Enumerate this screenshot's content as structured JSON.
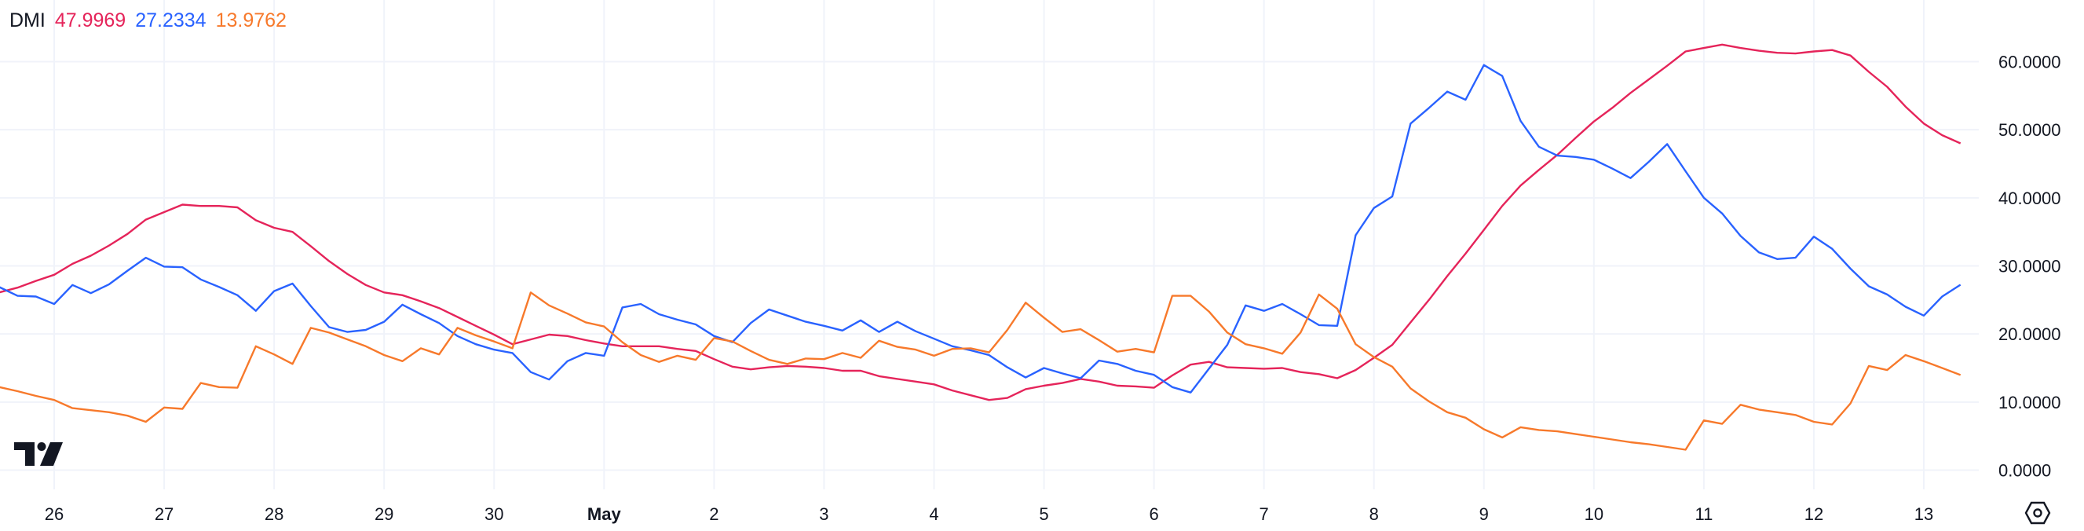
{
  "legend": {
    "title": "DMI",
    "adx_value": "47.9969",
    "plus_di_value": "27.2334",
    "minus_di_value": "13.9762"
  },
  "colors": {
    "adx": "#E5245A",
    "plus_di": "#2962FF",
    "minus_di": "#F7792B",
    "grid": "#F0F3FA",
    "text": "#131722"
  },
  "icons": {
    "logo": "tradingview-logo",
    "settings": "settings-hexagon-icon"
  },
  "chart_data": {
    "type": "line",
    "title": "DMI",
    "interval": "4h",
    "x_tick_labels": [
      "26",
      "27",
      "28",
      "29",
      "30",
      "May",
      "2",
      "3",
      "4",
      "5",
      "6",
      "7",
      "8",
      "9",
      "10",
      "11",
      "12",
      "13"
    ],
    "x_tick_dates": [
      "Apr 26",
      "Apr 27",
      "Apr 28",
      "Apr 29",
      "Apr 30",
      "May 1",
      "May 2",
      "May 3",
      "May 4",
      "May 5",
      "May 6",
      "May 7",
      "May 8",
      "May 9",
      "May 10",
      "May 11",
      "May 12",
      "May 13"
    ],
    "y_tick_labels": [
      "60.0000",
      "50.0000",
      "40.0000",
      "30.0000",
      "20.0000",
      "10.0000",
      "0.0000"
    ],
    "y_ticks": [
      60,
      50,
      40,
      30,
      20,
      10,
      0
    ],
    "ylim": [
      0,
      60
    ],
    "grid": true,
    "legend_position": "top-left",
    "x": [
      "Apr 25 12:00",
      "Apr 25 16:00",
      "Apr 25 20:00",
      "Apr 26 00:00",
      "Apr 26 04:00",
      "Apr 26 08:00",
      "Apr 26 12:00",
      "Apr 26 16:00",
      "Apr 26 20:00",
      "Apr 27 00:00",
      "Apr 27 04:00",
      "Apr 27 08:00",
      "Apr 27 12:00",
      "Apr 27 16:00",
      "Apr 27 20:00",
      "Apr 28 00:00",
      "Apr 28 04:00",
      "Apr 28 08:00",
      "Apr 28 12:00",
      "Apr 28 16:00",
      "Apr 28 20:00",
      "Apr 29 00:00",
      "Apr 29 04:00",
      "Apr 29 08:00",
      "Apr 29 12:00",
      "Apr 29 16:00",
      "Apr 29 20:00",
      "Apr 30 00:00",
      "Apr 30 04:00",
      "Apr 30 08:00",
      "Apr 30 12:00",
      "Apr 30 16:00",
      "Apr 30 20:00",
      "May 1 00:00",
      "May 1 04:00",
      "May 1 08:00",
      "May 1 12:00",
      "May 1 16:00",
      "May 1 20:00",
      "May 2 00:00",
      "May 2 04:00",
      "May 2 08:00",
      "May 2 12:00",
      "May 2 16:00",
      "May 2 20:00",
      "May 3 00:00",
      "May 3 04:00",
      "May 3 08:00",
      "May 3 12:00",
      "May 3 16:00",
      "May 3 20:00",
      "May 4 00:00",
      "May 4 04:00",
      "May 4 08:00",
      "May 4 12:00",
      "May 4 16:00",
      "May 4 20:00",
      "May 5 00:00",
      "May 5 04:00",
      "May 5 08:00",
      "May 5 12:00",
      "May 5 16:00",
      "May 5 20:00",
      "May 6 00:00",
      "May 6 04:00",
      "May 6 08:00",
      "May 6 12:00",
      "May 6 16:00",
      "May 6 20:00",
      "May 7 00:00",
      "May 7 04:00",
      "May 7 08:00",
      "May 7 12:00",
      "May 7 16:00",
      "May 7 20:00",
      "May 8 00:00",
      "May 8 04:00",
      "May 8 08:00",
      "May 8 12:00",
      "May 8 16:00",
      "May 8 20:00",
      "May 9 00:00",
      "May 9 04:00",
      "May 9 08:00",
      "May 9 12:00",
      "May 9 16:00",
      "May 9 20:00",
      "May 10 00:00",
      "May 10 04:00",
      "May 10 08:00",
      "May 10 12:00",
      "May 10 16:00",
      "May 10 20:00",
      "May 11 00:00",
      "May 11 04:00",
      "May 11 08:00",
      "May 11 12:00",
      "May 11 16:00",
      "May 11 20:00",
      "May 12 00:00",
      "May 12 04:00",
      "May 12 08:00",
      "May 12 12:00",
      "May 12 16:00",
      "May 12 20:00",
      "May 13 00:00",
      "May 13 04:00",
      "May 13 08:00"
    ],
    "series": [
      {
        "key": "adx",
        "values": [
          26.1,
          26.8,
          27.8,
          28.7,
          30.3,
          31.5,
          33,
          34.7,
          36.8,
          37.9,
          39,
          38.8,
          38.8,
          38.6,
          36.7,
          35.6,
          35,
          32.9,
          30.7,
          28.8,
          27.2,
          26.1,
          25.7,
          24.8,
          23.8,
          22.5,
          21.2,
          19.9,
          18.5,
          19.2,
          19.9,
          19.7,
          19.1,
          18.6,
          18.2,
          18.2,
          18.2,
          17.8,
          17.5,
          16.3,
          15.2,
          14.8,
          15.1,
          15.3,
          15.2,
          15,
          14.6,
          14.6,
          13.8,
          13.4,
          13,
          12.6,
          11.7,
          11,
          10.3,
          10.6,
          11.9,
          12.4,
          12.8,
          13.4,
          13,
          12.4,
          12.3,
          12.1,
          13.9,
          15.5,
          15.9,
          15.1,
          15,
          14.9,
          15,
          14.4,
          14.1,
          13.5,
          14.7,
          16.5,
          18.4,
          21.7,
          25,
          28.5,
          31.8,
          35.3,
          38.8,
          41.8,
          44.1,
          46.3,
          48.8,
          51.2,
          53.2,
          55.4,
          57.4,
          59.4,
          61.5,
          62,
          62.5,
          62,
          61.6,
          61.3,
          61.2,
          61.5,
          61.7,
          60.9,
          58.5,
          56.3,
          53.4,
          50.9,
          49.2,
          47.9969
        ]
      },
      {
        "key": "plus_di",
        "values": [
          26.9,
          25.6,
          25.5,
          24.4,
          27.2,
          26,
          27.3,
          29.3,
          31.2,
          29.9,
          29.8,
          28,
          26.9,
          25.7,
          23.4,
          26.3,
          27.4,
          24.1,
          21,
          20.3,
          20.6,
          21.8,
          24.3,
          22.9,
          21.6,
          19.7,
          18.5,
          17.7,
          17.2,
          14.4,
          13.3,
          16,
          17.2,
          16.8,
          23.9,
          24.4,
          22.9,
          22.1,
          21.4,
          19.7,
          18.8,
          21.6,
          23.6,
          22.7,
          21.8,
          21.2,
          20.5,
          22,
          20.3,
          21.8,
          20.4,
          19.3,
          18.2,
          17.6,
          16.9,
          15.1,
          13.6,
          15,
          14.2,
          13.5,
          16.1,
          15.6,
          14.6,
          14,
          12.2,
          11.4,
          14.9,
          18.4,
          24.2,
          23.4,
          24.4,
          22.9,
          21.3,
          21.2,
          34.5,
          38.5,
          40.2,
          50.9,
          53.2,
          55.6,
          54.4,
          59.5,
          57.9,
          51.3,
          47.5,
          46.2,
          46,
          45.6,
          44.3,
          42.9,
          45.3,
          47.9,
          43.9,
          40,
          37.7,
          34.4,
          32,
          31,
          31.2,
          34.3,
          32.5,
          29.6,
          27,
          25.8,
          24,
          22.7,
          25.5,
          27.2334
        ]
      },
      {
        "key": "minus_di",
        "values": [
          12.2,
          11.6,
          10.9,
          10.3,
          9.1,
          8.8,
          8.5,
          8,
          7.1,
          9.2,
          9,
          12.8,
          12.2,
          12.1,
          18.2,
          17,
          15.6,
          20.9,
          20.2,
          19.2,
          18.2,
          16.9,
          16,
          17.9,
          17,
          20.9,
          19.8,
          18.9,
          17.9,
          26.1,
          24.2,
          23,
          21.7,
          21.1,
          18.8,
          16.9,
          15.9,
          16.8,
          16.2,
          19.4,
          18.9,
          17.5,
          16.2,
          15.6,
          16.4,
          16.3,
          17.2,
          16.5,
          19,
          18.1,
          17.7,
          16.8,
          17.8,
          17.9,
          17.3,
          20.6,
          24.6,
          22.4,
          20.3,
          20.7,
          19.1,
          17.4,
          17.8,
          17.3,
          25.6,
          25.6,
          23.3,
          20.2,
          18.5,
          17.9,
          17.1,
          20.2,
          25.8,
          23.7,
          18.5,
          16.6,
          15.2,
          12,
          10.1,
          8.5,
          7.7,
          6,
          4.8,
          6.3,
          5.9,
          5.7,
          5.3,
          4.9,
          4.5,
          4.1,
          3.8,
          3.4,
          3.0,
          7.3,
          6.8,
          9.6,
          8.9,
          8.5,
          8.1,
          7.1,
          6.7,
          9.8,
          15.3,
          14.7,
          16.9,
          16,
          15,
          13.9762
        ]
      }
    ]
  }
}
